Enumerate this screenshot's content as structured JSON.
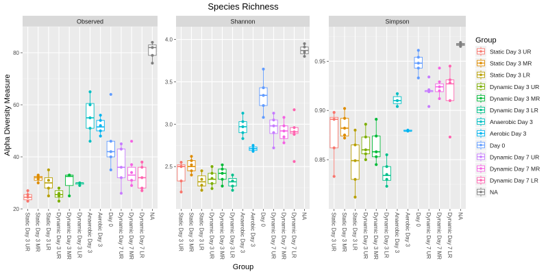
{
  "chart_data": {
    "type": "boxplot",
    "title": "Species Richness",
    "xlabel": "Group",
    "ylabel": "Alpha Diversity Measure",
    "legend": {
      "title": "Group",
      "placement": "right"
    },
    "groups": [
      "Static Day 3 UR",
      "Static Day 3 MR",
      "Static Day 3 LR",
      "Dynamic Day 3 UR",
      "Dynamic Day 3 MR",
      "Dynamic Day 3 LR",
      "Anaerobic Day 3",
      "Aerobic Day 3",
      "Day 0",
      "Dynamic Day 7 UR",
      "Dynamic Day 7 MR",
      "Dynamic Day 7 LR",
      "NA"
    ],
    "colors": [
      "#F8766D",
      "#DE8C00",
      "#B79F00",
      "#7CAE00",
      "#00BA38",
      "#00C08B",
      "#00BFC4",
      "#00B4F0",
      "#619CFF",
      "#C77CFF",
      "#F564E3",
      "#FF64B0",
      "#7F7F7F"
    ],
    "panels": [
      {
        "strip": "Observed",
        "ylim": [
          20,
          90
        ],
        "yticks": [
          "20",
          "40",
          "60",
          "80"
        ],
        "ytick_values": [
          20,
          40,
          60,
          80
        ],
        "boxes": [
          {
            "min": 23,
            "q1": 23.5,
            "median": 24.5,
            "q3": 25.5,
            "max": 27,
            "points": [
              23,
              24.5,
              25.5,
              27
            ]
          },
          {
            "min": 30,
            "q1": 31,
            "median": 32,
            "q3": 32.5,
            "max": 33,
            "points": [
              30,
              31.5,
              32.5,
              33
            ]
          },
          {
            "min": 25,
            "q1": 28,
            "median": 30,
            "q3": 32,
            "max": 35,
            "points": [
              25,
              28,
              31,
              35
            ]
          },
          {
            "min": 23,
            "q1": 24.5,
            "median": 25.5,
            "q3": 27,
            "max": 28,
            "points": [
              23,
              25,
              26,
              28
            ]
          },
          {
            "min": 25,
            "q1": 29,
            "median": 32.5,
            "q3": 33,
            "max": 33,
            "points": [
              25,
              33,
              33
            ]
          },
          {
            "min": 29,
            "q1": 29.5,
            "median": 30,
            "q3": 30,
            "max": 30,
            "points": [
              29,
              30
            ]
          },
          {
            "min": 46,
            "q1": 51,
            "median": 55,
            "q3": 60.5,
            "max": 65,
            "points": [
              46,
              51,
              55,
              60,
              65
            ]
          },
          {
            "min": 48,
            "q1": 50,
            "median": 51.5,
            "q3": 54,
            "max": 56,
            "points": [
              48,
              50,
              52,
              54,
              56
            ]
          },
          {
            "min": 35,
            "q1": 40,
            "median": 42,
            "q3": 46,
            "max": 46,
            "points": [
              35,
              40,
              42,
              46,
              64
            ]
          },
          {
            "min": 26,
            "q1": 32,
            "median": 36,
            "q3": 43,
            "max": 45,
            "points": [
              26,
              32,
              36,
              43,
              45
            ]
          },
          {
            "min": 29,
            "q1": 31,
            "median": 33,
            "q3": 36,
            "max": 37,
            "points": [
              29,
              31,
              34,
              37,
              46
            ]
          },
          {
            "min": 27,
            "q1": 28,
            "median": 32,
            "q3": 36,
            "max": 38,
            "points": [
              27,
              28,
              32,
              36,
              38
            ]
          },
          {
            "min": 76,
            "q1": 79,
            "median": 82,
            "q3": 83,
            "max": 84,
            "points": [
              76,
              79,
              82,
              84
            ]
          }
        ]
      },
      {
        "strip": "Shannon",
        "ylim": [
          2.0,
          4.15
        ],
        "yticks": [
          "2.5",
          "3.0",
          "3.5",
          "4.0"
        ],
        "ytick_values": [
          2.5,
          3.0,
          3.5,
          4.0
        ],
        "boxes": [
          {
            "min": 2.2,
            "q1": 2.33,
            "median": 2.5,
            "q3": 2.52,
            "max": 2.55,
            "points": [
              2.2,
              2.33,
              2.5,
              2.55
            ]
          },
          {
            "min": 2.4,
            "q1": 2.45,
            "median": 2.5,
            "q3": 2.57,
            "max": 2.62,
            "points": [
              2.4,
              2.45,
              2.52,
              2.57,
              2.62
            ]
          },
          {
            "min": 2.22,
            "q1": 2.27,
            "median": 2.32,
            "q3": 2.39,
            "max": 2.45,
            "points": [
              2.22,
              2.28,
              2.35,
              2.45
            ]
          },
          {
            "min": 2.24,
            "q1": 2.3,
            "median": 2.35,
            "q3": 2.42,
            "max": 2.5,
            "points": [
              2.24,
              2.3,
              2.36,
              2.42,
              2.5
            ]
          },
          {
            "min": 2.27,
            "q1": 2.35,
            "median": 2.42,
            "q3": 2.47,
            "max": 2.52,
            "points": [
              2.27,
              2.35,
              2.42,
              2.47,
              2.52
            ]
          },
          {
            "min": 2.22,
            "q1": 2.27,
            "median": 2.32,
            "q3": 2.36,
            "max": 2.4,
            "points": [
              2.22,
              2.27,
              2.33,
              2.4
            ]
          },
          {
            "min": 2.83,
            "q1": 2.9,
            "median": 2.97,
            "q3": 3.03,
            "max": 3.13,
            "points": [
              2.83,
              2.9,
              2.97,
              3.03,
              3.13
            ]
          },
          {
            "min": 2.68,
            "q1": 2.69,
            "median": 2.71,
            "q3": 2.73,
            "max": 2.75,
            "points": [
              2.68,
              2.71,
              2.75
            ]
          },
          {
            "min": 3.08,
            "q1": 3.22,
            "median": 3.34,
            "q3": 3.43,
            "max": 3.65,
            "points": [
              3.08,
              3.22,
              3.34,
              3.43,
              3.65
            ]
          },
          {
            "min": 2.72,
            "q1": 2.89,
            "median": 2.98,
            "q3": 3.05,
            "max": 3.13,
            "points": [
              2.72,
              2.9,
              2.98,
              3.05,
              3.13
            ]
          },
          {
            "min": 2.78,
            "q1": 2.83,
            "median": 2.92,
            "q3": 2.98,
            "max": 3.08,
            "points": [
              2.78,
              2.85,
              2.92,
              2.98,
              3.08
            ]
          },
          {
            "min": 2.88,
            "q1": 2.89,
            "median": 2.91,
            "q3": 2.96,
            "max": 2.97,
            "points": [
              2.56,
              2.88,
              2.91,
              2.96,
              3.17
            ]
          },
          {
            "min": 3.8,
            "q1": 3.83,
            "median": 3.87,
            "q3": 3.91,
            "max": 3.95,
            "points": [
              3.8,
              3.85,
              3.91,
              3.95
            ]
          }
        ]
      },
      {
        "strip": "Simpson",
        "ylim": [
          0.8,
          0.985
        ],
        "yticks": [
          "0.85",
          "0.90",
          "0.95"
        ],
        "ytick_values": [
          0.85,
          0.9,
          0.95
        ],
        "boxes": [
          {
            "min": 0.833,
            "q1": 0.862,
            "median": 0.891,
            "q3": 0.893,
            "max": 0.898,
            "points": [
              0.833,
              0.862,
              0.891,
              0.898
            ]
          },
          {
            "min": 0.872,
            "q1": 0.874,
            "median": 0.882,
            "q3": 0.892,
            "max": 0.902,
            "points": [
              0.872,
              0.875,
              0.882,
              0.892,
              0.902
            ]
          },
          {
            "min": 0.812,
            "q1": 0.83,
            "median": 0.849,
            "q3": 0.865,
            "max": 0.88,
            "points": [
              0.812,
              0.83,
              0.849,
              0.865,
              0.88
            ]
          },
          {
            "min": 0.85,
            "q1": 0.856,
            "median": 0.86,
            "q3": 0.873,
            "max": 0.886,
            "points": [
              0.85,
              0.856,
              0.86,
              0.873,
              0.886
            ]
          },
          {
            "min": 0.845,
            "q1": 0.853,
            "median": 0.858,
            "q3": 0.874,
            "max": 0.891,
            "points": [
              0.845,
              0.853,
              0.858,
              0.874,
              0.891
            ]
          },
          {
            "min": 0.823,
            "q1": 0.829,
            "median": 0.834,
            "q3": 0.843,
            "max": 0.855,
            "points": [
              0.823,
              0.83,
              0.835,
              0.843,
              0.855
            ]
          },
          {
            "min": 0.904,
            "q1": 0.907,
            "median": 0.91,
            "q3": 0.914,
            "max": 0.917,
            "points": [
              0.904,
              0.91,
              0.917
            ]
          },
          {
            "min": 0.879,
            "q1": 0.879,
            "median": 0.879,
            "q3": 0.88,
            "max": 0.88,
            "points": [
              0.879,
              0.88
            ]
          },
          {
            "min": 0.933,
            "q1": 0.943,
            "median": 0.948,
            "q3": 0.954,
            "max": 0.961,
            "points": [
              0.933,
              0.943,
              0.948,
              0.954,
              0.961
            ]
          },
          {
            "min": 0.918,
            "q1": 0.919,
            "median": 0.92,
            "q3": 0.92,
            "max": 0.921,
            "points": [
              0.904,
              0.919,
              0.921,
              0.934
            ]
          },
          {
            "min": 0.912,
            "q1": 0.919,
            "median": 0.924,
            "q3": 0.927,
            "max": 0.929,
            "points": [
              0.912,
              0.92,
              0.924,
              0.929,
              0.943
            ]
          },
          {
            "min": 0.909,
            "q1": 0.91,
            "median": 0.927,
            "q3": 0.931,
            "max": 0.945,
            "points": [
              0.873,
              0.91,
              0.928,
              0.931,
              0.945
            ]
          },
          {
            "min": 0.965,
            "q1": 0.966,
            "median": 0.967,
            "q3": 0.968,
            "max": 0.969,
            "points": [
              0.965,
              0.967,
              0.969
            ]
          }
        ]
      }
    ]
  }
}
